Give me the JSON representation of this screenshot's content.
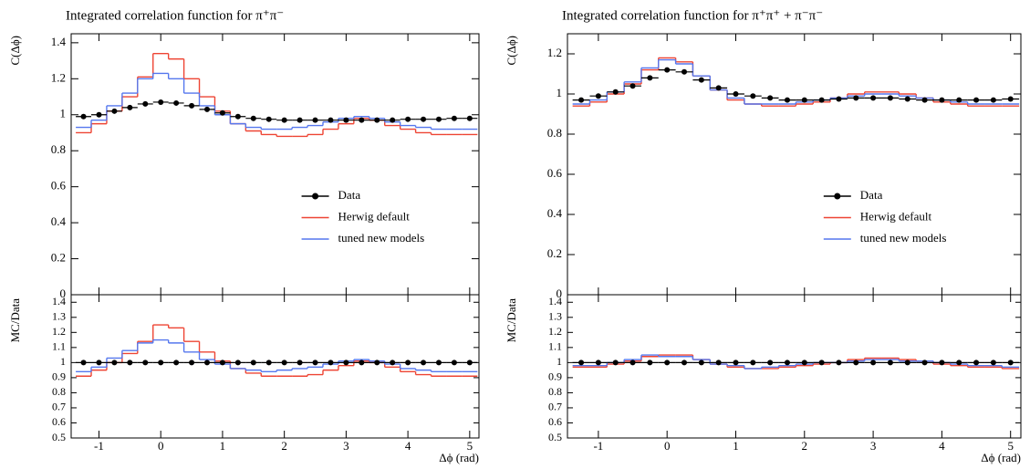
{
  "chart_data": [
    {
      "type": "histogram",
      "title": "Integrated correlation function for π⁺π⁻",
      "ylabel": "C(Δϕ)",
      "xlabel": "Δϕ (rad)",
      "xlim": [
        -1.45,
        5.15
      ],
      "xticks": [
        -1,
        0,
        1,
        2,
        3,
        4,
        5
      ],
      "ylim": [
        0,
        1.45
      ],
      "yticks": [
        0,
        0.2,
        0.4,
        0.6,
        0.8,
        1,
        1.2,
        1.4
      ],
      "bins": [
        -1.375,
        -1.125,
        -0.875,
        -0.625,
        -0.375,
        -0.125,
        0.125,
        0.375,
        0.625,
        0.875,
        1.125,
        1.375,
        1.625,
        1.875,
        2.125,
        2.375,
        2.625,
        2.875,
        3.125,
        3.375,
        3.625,
        3.875,
        4.125,
        4.375,
        4.625,
        4.875,
        5.125
      ],
      "series": [
        {
          "name": "Data",
          "color": "#000000",
          "values": [
            0.99,
            1.0,
            1.02,
            1.04,
            1.06,
            1.07,
            1.065,
            1.05,
            1.03,
            1.01,
            0.99,
            0.98,
            0.975,
            0.97,
            0.97,
            0.97,
            0.97,
            0.97,
            0.97,
            0.97,
            0.97,
            0.975,
            0.975,
            0.975,
            0.98,
            0.98
          ]
        },
        {
          "name": "Herwig default",
          "color": "#ee4433",
          "values": [
            0.9,
            0.95,
            1.02,
            1.1,
            1.21,
            1.34,
            1.31,
            1.2,
            1.1,
            1.02,
            0.95,
            0.91,
            0.89,
            0.88,
            0.88,
            0.89,
            0.92,
            0.95,
            0.98,
            0.97,
            0.94,
            0.92,
            0.9,
            0.89,
            0.89,
            0.89
          ]
        },
        {
          "name": "tuned new models",
          "color": "#5577ee",
          "values": [
            0.93,
            0.97,
            1.05,
            1.12,
            1.2,
            1.23,
            1.2,
            1.12,
            1.05,
            1.0,
            0.95,
            0.93,
            0.92,
            0.92,
            0.93,
            0.94,
            0.96,
            0.98,
            0.99,
            0.98,
            0.96,
            0.94,
            0.93,
            0.92,
            0.92,
            0.92
          ]
        }
      ],
      "ratio": {
        "ylabel": "MC/Data",
        "ylim": [
          0.5,
          1.45
        ],
        "yticks": [
          0.5,
          0.6,
          0.7,
          0.8,
          0.9,
          1,
          1.1,
          1.2,
          1.3,
          1.4
        ],
        "series": [
          {
            "values": [
              1,
              1,
              1,
              1,
              1,
              1,
              1,
              1,
              1,
              1,
              1,
              1,
              1,
              1,
              1,
              1,
              1,
              1,
              1,
              1,
              1,
              1,
              1,
              1,
              1,
              1
            ]
          },
          {
            "values": [
              0.91,
              0.95,
              1.0,
              1.06,
              1.14,
              1.25,
              1.23,
              1.14,
              1.07,
              1.01,
              0.96,
              0.93,
              0.91,
              0.91,
              0.91,
              0.92,
              0.95,
              0.98,
              1.01,
              1.0,
              0.97,
              0.94,
              0.92,
              0.91,
              0.91,
              0.91
            ]
          },
          {
            "values": [
              0.94,
              0.97,
              1.03,
              1.08,
              1.13,
              1.15,
              1.13,
              1.07,
              1.02,
              0.99,
              0.96,
              0.95,
              0.94,
              0.95,
              0.96,
              0.97,
              0.99,
              1.01,
              1.02,
              1.01,
              0.99,
              0.96,
              0.95,
              0.94,
              0.94,
              0.94
            ]
          }
        ]
      }
    },
    {
      "type": "histogram",
      "title": "Integrated correlation function for π⁺π⁺ + π⁻π⁻",
      "ylabel": "C(Δϕ)",
      "xlabel": "Δϕ (rad)",
      "xlim": [
        -1.45,
        5.15
      ],
      "xticks": [
        -1,
        0,
        1,
        2,
        3,
        4,
        5
      ],
      "ylim": [
        0,
        1.3
      ],
      "yticks": [
        0,
        0.2,
        0.4,
        0.6,
        0.8,
        1,
        1.2
      ],
      "bins": [
        -1.375,
        -1.125,
        -0.875,
        -0.625,
        -0.375,
        -0.125,
        0.125,
        0.375,
        0.625,
        0.875,
        1.125,
        1.375,
        1.625,
        1.875,
        2.125,
        2.375,
        2.625,
        2.875,
        3.125,
        3.375,
        3.625,
        3.875,
        4.125,
        4.375,
        4.625,
        4.875,
        5.125
      ],
      "series": [
        {
          "name": "Data",
          "color": "#000000",
          "values": [
            0.97,
            0.99,
            1.01,
            1.04,
            1.08,
            1.12,
            1.11,
            1.07,
            1.03,
            1.0,
            0.99,
            0.98,
            0.97,
            0.97,
            0.97,
            0.975,
            0.98,
            0.98,
            0.98,
            0.975,
            0.97,
            0.97,
            0.97,
            0.97,
            0.97,
            0.975
          ]
        },
        {
          "name": "Herwig default",
          "color": "#ee4433",
          "values": [
            0.94,
            0.96,
            1.0,
            1.05,
            1.12,
            1.18,
            1.16,
            1.09,
            1.02,
            0.97,
            0.95,
            0.94,
            0.94,
            0.95,
            0.96,
            0.98,
            1.0,
            1.01,
            1.01,
            1.0,
            0.98,
            0.96,
            0.95,
            0.94,
            0.94,
            0.94
          ]
        },
        {
          "name": "tuned new models",
          "color": "#5577ee",
          "values": [
            0.95,
            0.97,
            1.01,
            1.06,
            1.13,
            1.17,
            1.15,
            1.09,
            1.02,
            0.98,
            0.95,
            0.95,
            0.95,
            0.96,
            0.97,
            0.98,
            0.99,
            1.0,
            1.0,
            0.99,
            0.98,
            0.97,
            0.96,
            0.95,
            0.95,
            0.95
          ]
        }
      ],
      "ratio": {
        "ylabel": "MC/Data",
        "ylim": [
          0.5,
          1.45
        ],
        "yticks": [
          0.5,
          0.6,
          0.7,
          0.8,
          0.9,
          1,
          1.1,
          1.2,
          1.3,
          1.4
        ],
        "series": [
          {
            "values": [
              1,
              1,
              1,
              1,
              1,
              1,
              1,
              1,
              1,
              1,
              1,
              1,
              1,
              1,
              1,
              1,
              1,
              1,
              1,
              1,
              1,
              1,
              1,
              1,
              1,
              1
            ]
          },
          {
            "values": [
              0.97,
              0.97,
              0.99,
              1.01,
              1.04,
              1.05,
              1.05,
              1.02,
              0.99,
              0.97,
              0.96,
              0.96,
              0.97,
              0.98,
              0.99,
              1.0,
              1.02,
              1.03,
              1.03,
              1.02,
              1.01,
              0.99,
              0.98,
              0.97,
              0.97,
              0.96
            ]
          },
          {
            "values": [
              0.98,
              0.98,
              1.0,
              1.02,
              1.05,
              1.04,
              1.04,
              1.02,
              0.99,
              0.98,
              0.96,
              0.97,
              0.98,
              0.99,
              1.0,
              1.0,
              1.01,
              1.02,
              1.02,
              1.01,
              1.01,
              1.0,
              0.99,
              0.98,
              0.98,
              0.97
            ]
          }
        ]
      }
    }
  ]
}
